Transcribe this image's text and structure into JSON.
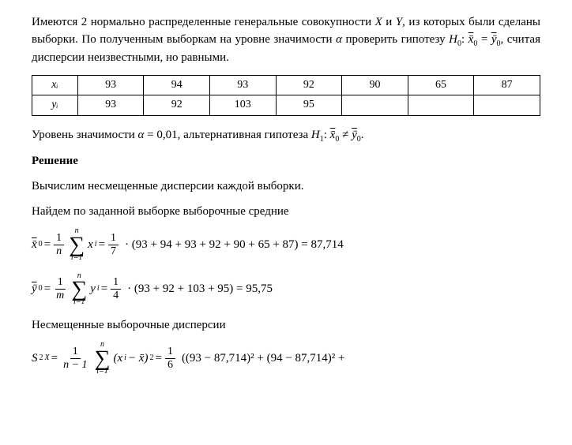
{
  "intro": {
    "line1_a": "Имеются 2 нормально распределенные генеральные совокупности ",
    "line1_b": " и ",
    "line1_c": ", из которых были сделаны выборки. По полученным выборкам на уровне значимости ",
    "line1_d": " проверить гипотезу ",
    "line1_e": ", считая дисперсии неизвестными, но равными.",
    "X": "X",
    "Y": "Y",
    "alpha": "α",
    "H0": "H",
    "H0sub": "0",
    "H0colon": ":  ",
    "xbar0": "x̄",
    "eq": " = ",
    "ybar0": "ȳ",
    "zero": "0"
  },
  "table": {
    "row1_label": "xᵢ",
    "row2_label": "yᵢ",
    "x": [
      "93",
      "94",
      "93",
      "92",
      "90",
      "65",
      "87"
    ],
    "y": [
      "93",
      "92",
      "103",
      "95",
      "",
      "",
      ""
    ]
  },
  "alpha_line": {
    "a": "Уровень значимости ",
    "alpha": "α",
    "eq": " = 0,01, альтернативная гипотеза ",
    "H1": "H",
    "H1sub": "1",
    "colon": ": ",
    "xbar0": "x̄",
    "neq": " ≠ ",
    "ybar0": "ȳ",
    "zero": "0",
    "dot": "."
  },
  "solution_header": "Решение",
  "line_disp": "Вычислим несмещенные дисперсии каждой выборки.",
  "line_mean": "Найдем по заданной выборке выборочные средние",
  "f1": {
    "lhs": "x̄",
    "lhs_sub": "0",
    "num1": "1",
    "den1": "n",
    "sum_top": "n",
    "sum_bot": "i=1",
    "xi": "x",
    "xi_sub": "i",
    "num2": "1",
    "den2": "7",
    "tail": "· (93 + 94 + 93 + 92 + 90 + 65 + 87) = 87,714"
  },
  "f2": {
    "lhs": "ȳ",
    "lhs_sub": "0",
    "num1": "1",
    "den1": "m",
    "sum_top": "n",
    "sum_bot": "i=1",
    "yi": "y",
    "yi_sub": "i",
    "num2": "1",
    "den2": "4",
    "tail": "· (93 + 92 + 103 + 95) = 95,75"
  },
  "line_unbiased": "Несмещенные выборочные дисперсии",
  "f3": {
    "lhs": "S",
    "lhs_sup": "2",
    "lhs_sub": "X",
    "num1": "1",
    "den1": "n − 1",
    "sum_top": "n",
    "sum_bot": "i=1",
    "diff_a": "(x",
    "diff_sub": "i",
    "diff_b": " − x̄)",
    "diff_sup": "2",
    "num2": "1",
    "den2": "6",
    "tail": "((93 − 87,714)² + (94 − 87,714)² +"
  }
}
